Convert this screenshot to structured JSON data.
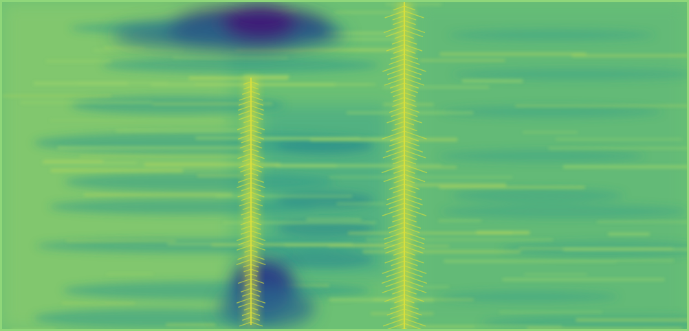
{
  "image": {
    "colormap": [
      "#440154",
      "#3b528b",
      "#21918c",
      "#5ec962",
      "#fde725"
    ],
    "palette": {
      "base": "#58b878",
      "deep": "#3c1b78",
      "mid_teal": "#2f9a8a",
      "light_green": "#9ad36a",
      "yellow": "#d7de3c",
      "border": "#8fd77a"
    }
  }
}
